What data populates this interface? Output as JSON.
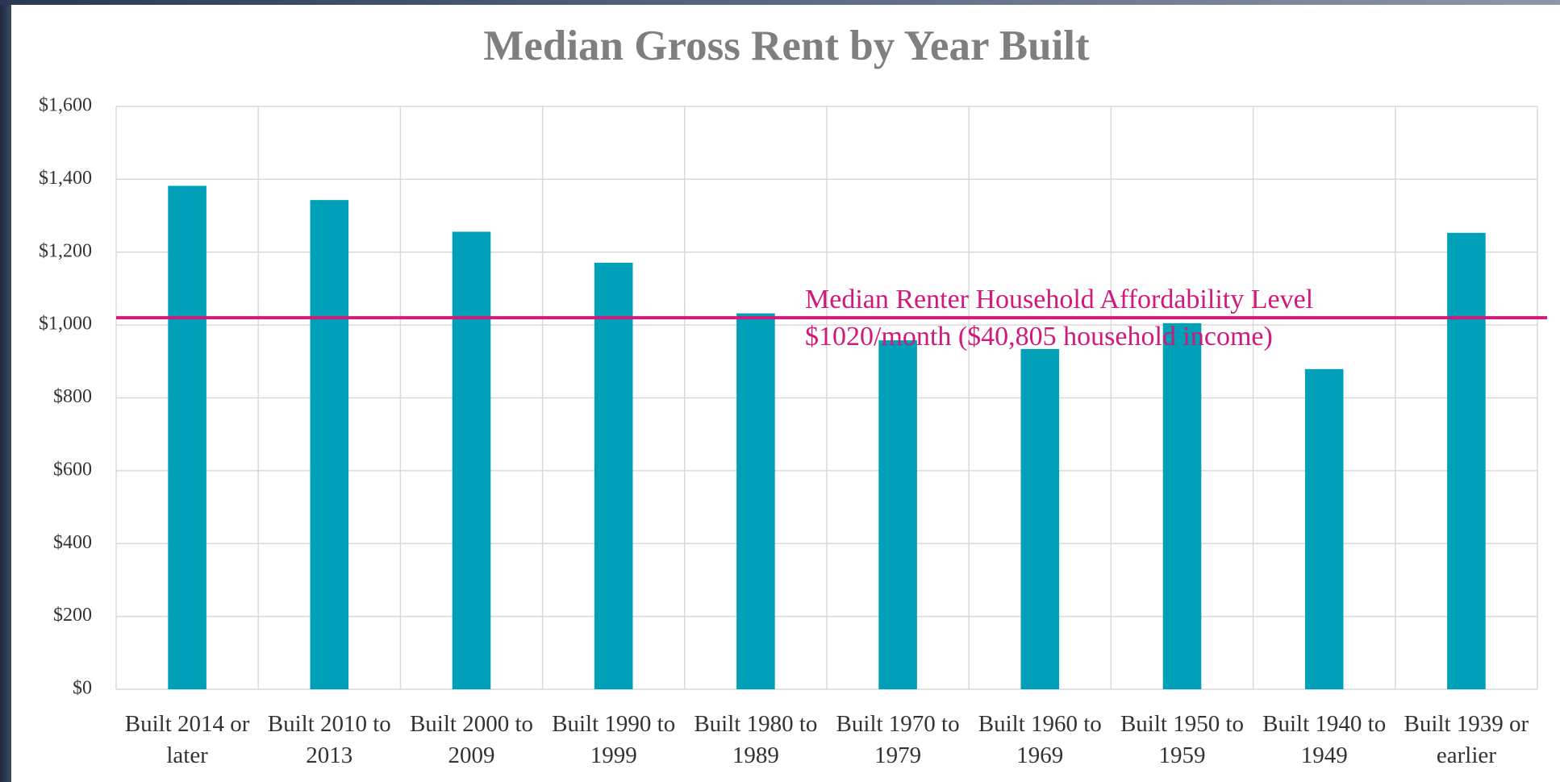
{
  "chart_data": {
    "type": "bar",
    "title": "Median Gross Rent by Year Built",
    "categories": [
      "Built 2014 or later",
      "Built 2010 to 2013",
      "Built 2000 to 2009",
      "Built 1990 to 1999",
      "Built 1980 to 1989",
      "Built 1970 to 1979",
      "Built 1960 to 1969",
      "Built 1950 to 1959",
      "Built 1940 to 1949",
      "Built 1939 or earlier"
    ],
    "values": [
      1382,
      1343,
      1256,
      1171,
      1032,
      958,
      934,
      1005,
      879,
      1253
    ],
    "color": "#00a0b9",
    "ylim": [
      0,
      1600
    ],
    "yticks": [
      {
        "value": 0,
        "label": "$0"
      },
      {
        "value": 200,
        "label": "$200"
      },
      {
        "value": 400,
        "label": "$400"
      },
      {
        "value": 600,
        "label": "$600"
      },
      {
        "value": 800,
        "label": "$800"
      },
      {
        "value": 1000,
        "label": "$1,000"
      },
      {
        "value": 1200,
        "label": "$1,200"
      },
      {
        "value": 1400,
        "label": "$1,400"
      },
      {
        "value": 1600,
        "label": "$1,600"
      }
    ],
    "grid": true,
    "reference_line": {
      "value": 1020,
      "color": "#d0197a",
      "annotations": [
        "Median Renter Household Affordability Level",
        "$1020/month ($40,805 household income)"
      ]
    }
  }
}
